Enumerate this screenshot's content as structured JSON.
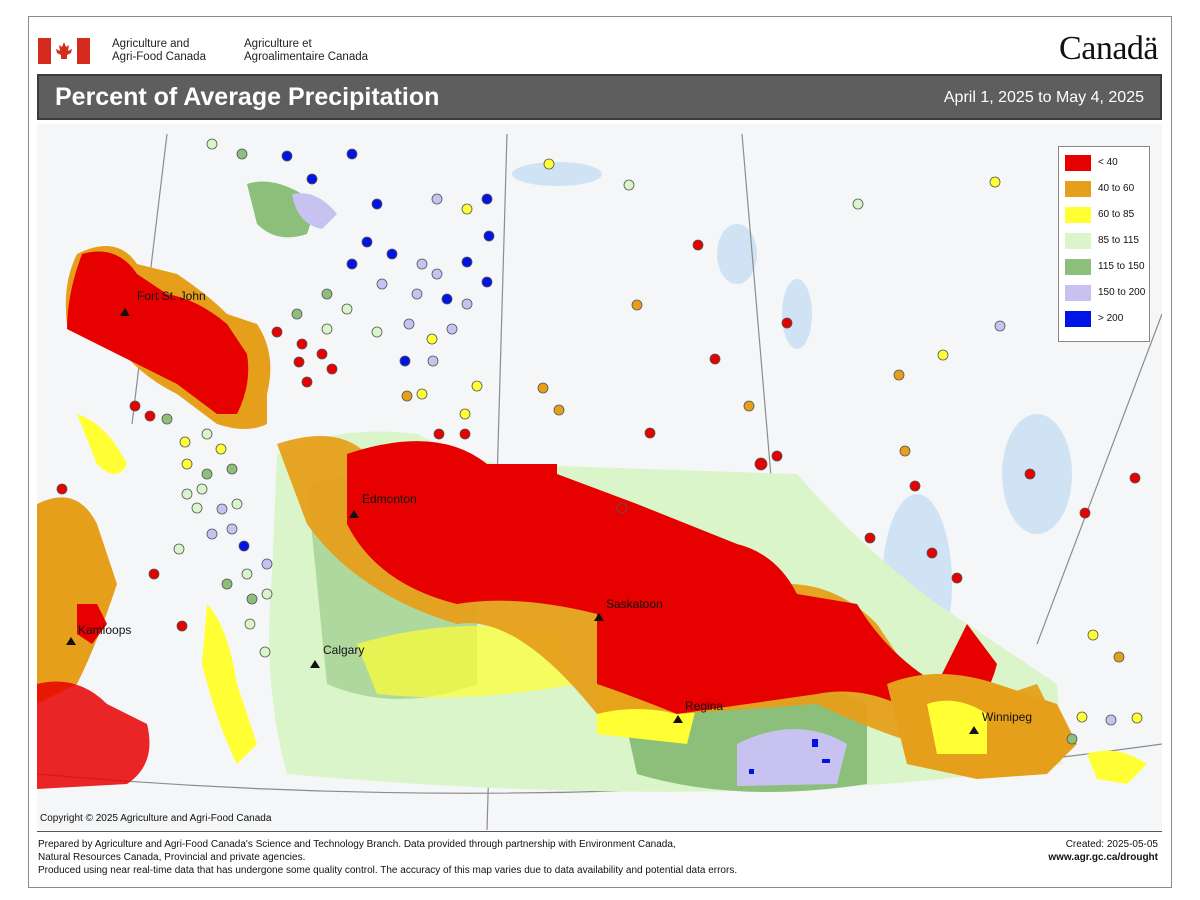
{
  "header": {
    "dept_en_line1": "Agriculture and",
    "dept_en_line2": "Agri-Food Canada",
    "dept_fr_line1": "Agriculture et",
    "dept_fr_line2": "Agroalimentaire Canada",
    "wordmark": "Canadä"
  },
  "title": "Percent of Average Precipitation",
  "date_range": "April 1, 2025 to May 4, 2025",
  "legend": {
    "items": [
      {
        "label": "< 40",
        "color": "#e60000"
      },
      {
        "label": "40 to 60",
        "color": "#e69f1a"
      },
      {
        "label": "60 to 85",
        "color": "#ffff33"
      },
      {
        "label": "85 to 115",
        "color": "#d9f5c9"
      },
      {
        "label": "115 to 150",
        "color": "#8cc07a"
      },
      {
        "label": "150 to 200",
        "color": "#c7c2f0"
      },
      {
        "label": "> 200",
        "color": "#0014e6"
      }
    ]
  },
  "cities": [
    {
      "name": "Fort St. John"
    },
    {
      "name": "Edmonton"
    },
    {
      "name": "Saskatoon"
    },
    {
      "name": "Kamloops"
    },
    {
      "name": "Calgary"
    },
    {
      "name": "Regina"
    },
    {
      "name": "Winnipeg"
    }
  ],
  "copyright": "Copyright © 2025 Agriculture and Agri-Food Canada",
  "footer": {
    "line1": "Prepared by Agriculture and Agri-Food Canada's Science and Technology Branch. Data provided through partnership with Environment Canada,",
    "line2": "Natural Resources Canada, Provincial and private agencies.",
    "line3": "Produced using near real-time data that has undergone some quality control. The accuracy of this map varies due to data availability and potential data errors.",
    "created": "Created: 2025-05-05",
    "url": "www.agr.gc.ca/drought"
  }
}
